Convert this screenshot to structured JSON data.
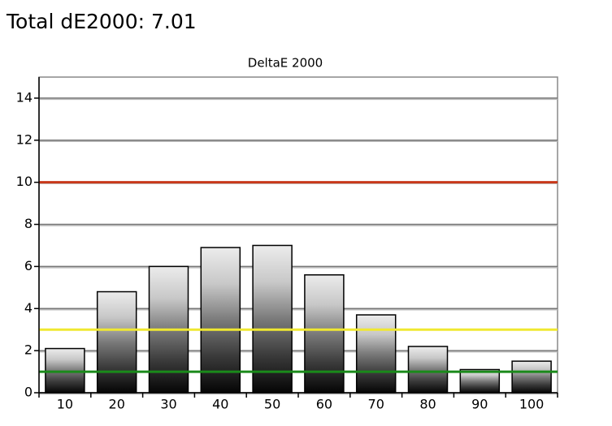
{
  "chart_data": {
    "type": "bar",
    "heading": "Total dE2000: 7.01",
    "title": "DeltaE 2000",
    "categories": [
      "10",
      "20",
      "30",
      "40",
      "50",
      "60",
      "70",
      "80",
      "90",
      "100"
    ],
    "values": [
      2.1,
      4.8,
      6.0,
      6.9,
      7.0,
      5.6,
      3.7,
      2.2,
      1.1,
      1.5
    ],
    "ylim": [
      0,
      15
    ],
    "yticks": [
      0,
      2,
      4,
      6,
      8,
      10,
      12,
      14
    ],
    "grid": true,
    "reference_lines": [
      {
        "value": 10,
        "color": "#c8381a"
      },
      {
        "value": 3,
        "color": "#f0e830"
      },
      {
        "value": 1,
        "color": "#1a8a1a"
      }
    ]
  }
}
